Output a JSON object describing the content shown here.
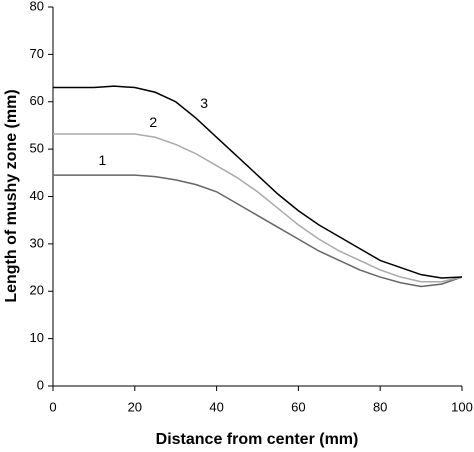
{
  "chart_data": {
    "type": "line",
    "x_label": "Distance from center (mm)",
    "y_label": "Length of mushy zone (mm)",
    "x": [
      0,
      5,
      10,
      15,
      20,
      25,
      30,
      35,
      40,
      45,
      50,
      55,
      60,
      65,
      70,
      75,
      80,
      85,
      90,
      95,
      100
    ],
    "series": [
      {
        "name": "1",
        "color": "#666666",
        "values": [
          44.5,
          44.5,
          44.5,
          44.5,
          44.5,
          44.2,
          43.5,
          42.5,
          41,
          38.5,
          36,
          33.5,
          31,
          28.5,
          26.5,
          24.5,
          23,
          21.8,
          21,
          21.5,
          23
        ]
      },
      {
        "name": "2",
        "color": "#aaaaaa",
        "values": [
          53.2,
          53.2,
          53.2,
          53.2,
          53.2,
          52.5,
          51,
          49,
          46.5,
          44,
          41,
          37.5,
          34,
          31,
          28.5,
          26.5,
          24.5,
          23,
          22,
          22,
          23
        ]
      },
      {
        "name": "3",
        "color": "#000000",
        "values": [
          63,
          63,
          63,
          63.3,
          63,
          62,
          60,
          56.5,
          52.5,
          48.5,
          44.5,
          40.5,
          37,
          34,
          31.5,
          29,
          26.5,
          25,
          23.5,
          22.8,
          23
        ]
      }
    ],
    "xlim": [
      0,
      100
    ],
    "xticks": [
      0,
      20,
      40,
      60,
      80,
      100
    ],
    "ylim": [
      0,
      80
    ],
    "yticks": [
      0,
      10,
      20,
      30,
      40,
      50,
      60,
      70,
      80
    ]
  }
}
